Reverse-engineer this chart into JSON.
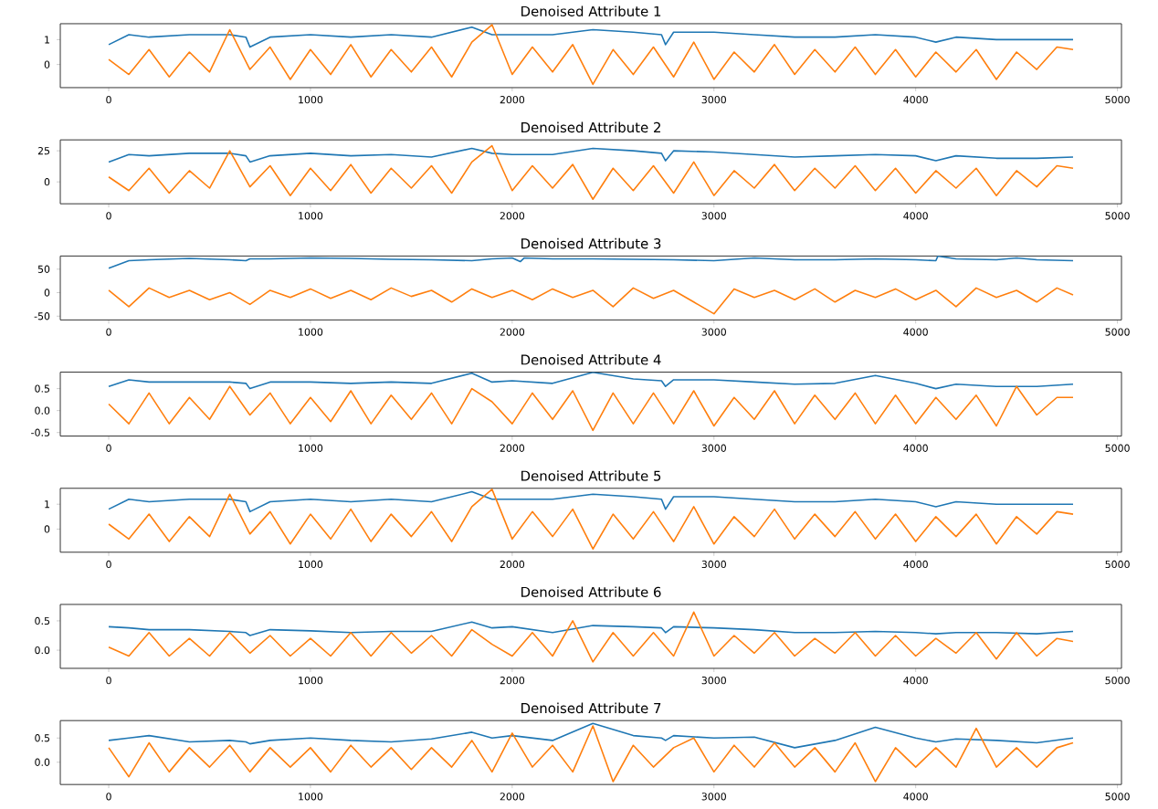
{
  "chart_data": [
    {
      "type": "line",
      "title": "Denoised Attribute 1",
      "xlim": [
        -240,
        5020
      ],
      "xticks": [
        0,
        1000,
        2000,
        3000,
        4000,
        5000
      ],
      "ylim": [
        -0.93,
        1.64
      ],
      "yticks": [
        0,
        1
      ],
      "x": [
        0,
        100,
        200,
        300,
        400,
        500,
        600,
        700,
        800,
        900,
        1000,
        1100,
        1200,
        1300,
        1400,
        1500,
        1600,
        1700,
        1800,
        1900,
        2000,
        2100,
        2200,
        2300,
        2400,
        2500,
        2600,
        2700,
        2800,
        2900,
        3000,
        3100,
        3200,
        3300,
        3400,
        3500,
        3600,
        3700,
        3800,
        3900,
        4000,
        4100,
        4200,
        4300,
        4400,
        4500,
        4600,
        4700,
        4780
      ],
      "series": [
        {
          "color": "#1f77b4",
          "x": [
            0,
            100,
            200,
            400,
            600,
            680,
            700,
            800,
            1000,
            1200,
            1400,
            1600,
            1800,
            1900,
            2000,
            2200,
            2400,
            2600,
            2740,
            2760,
            2800,
            3000,
            3200,
            3400,
            3600,
            3800,
            4000,
            4100,
            4200,
            4400,
            4600,
            4780
          ],
          "values": [
            0.8,
            1.2,
            1.1,
            1.2,
            1.2,
            1.1,
            0.7,
            1.1,
            1.2,
            1.1,
            1.2,
            1.1,
            1.5,
            1.2,
            1.2,
            1.2,
            1.4,
            1.3,
            1.2,
            0.8,
            1.3,
            1.3,
            1.2,
            1.1,
            1.1,
            1.2,
            1.1,
            0.9,
            1.1,
            1.0,
            1.0,
            1.0
          ]
        },
        {
          "color": "#ff7f0e",
          "values": [
            0.2,
            -0.4,
            0.6,
            -0.5,
            0.5,
            -0.3,
            1.4,
            -0.2,
            0.7,
            -0.6,
            0.6,
            -0.4,
            0.8,
            -0.5,
            0.6,
            -0.3,
            0.7,
            -0.5,
            0.9,
            1.6,
            -0.4,
            0.7,
            -0.3,
            0.8,
            -0.8,
            0.6,
            -0.4,
            0.7,
            -0.5,
            0.9,
            -0.6,
            0.5,
            -0.3,
            0.8,
            -0.4,
            0.6,
            -0.3,
            0.7,
            -0.4,
            0.6,
            -0.5,
            0.5,
            -0.3,
            0.6,
            -0.6,
            0.5,
            -0.2,
            0.7,
            0.6
          ]
        }
      ]
    },
    {
      "type": "line",
      "title": "Denoised Attribute 2",
      "xlim": [
        -240,
        5020
      ],
      "xticks": [
        0,
        1000,
        2000,
        3000,
        4000,
        5000
      ],
      "ylim": [
        -17.6,
        33.8
      ],
      "yticks": [
        0,
        25
      ],
      "x": [
        0,
        100,
        200,
        300,
        400,
        500,
        600,
        700,
        800,
        900,
        1000,
        1100,
        1200,
        1300,
        1400,
        1500,
        1600,
        1700,
        1800,
        1900,
        2000,
        2100,
        2200,
        2300,
        2400,
        2500,
        2600,
        2700,
        2800,
        2900,
        3000,
        3100,
        3200,
        3300,
        3400,
        3500,
        3600,
        3700,
        3800,
        3900,
        4000,
        4100,
        4200,
        4300,
        4400,
        4500,
        4600,
        4700,
        4780
      ],
      "series": [
        {
          "color": "#1f77b4",
          "x": [
            0,
            100,
            200,
            400,
            600,
            680,
            700,
            800,
            1000,
            1200,
            1400,
            1600,
            1800,
            1900,
            2000,
            2200,
            2400,
            2600,
            2740,
            2760,
            2800,
            3000,
            3200,
            3400,
            3600,
            3800,
            4000,
            4100,
            4200,
            4400,
            4600,
            4780
          ],
          "values": [
            16,
            22,
            21,
            23,
            23,
            21,
            16,
            21,
            23,
            21,
            22,
            20,
            27,
            23,
            22,
            22,
            27,
            25,
            23,
            17,
            25,
            24,
            22,
            20,
            21,
            22,
            21,
            17,
            21,
            19,
            19,
            20
          ]
        },
        {
          "color": "#ff7f0e",
          "values": [
            4,
            -7,
            11,
            -9,
            9,
            -5,
            25,
            -4,
            13,
            -11,
            11,
            -7,
            14,
            -9,
            11,
            -5,
            13,
            -9,
            16,
            29,
            -7,
            13,
            -5,
            14,
            -14,
            11,
            -7,
            13,
            -9,
            16,
            -11,
            9,
            -5,
            14,
            -7,
            11,
            -5,
            13,
            -7,
            11,
            -9,
            9,
            -5,
            11,
            -11,
            9,
            -4,
            13,
            11
          ]
        }
      ]
    },
    {
      "type": "line",
      "title": "Denoised Attribute 3",
      "xlim": [
        -240,
        5020
      ],
      "xticks": [
        0,
        1000,
        2000,
        3000,
        4000,
        5000
      ],
      "ylim": [
        -58,
        78
      ],
      "yticks": [
        -50,
        0,
        50
      ],
      "x": [
        0,
        100,
        200,
        300,
        400,
        500,
        600,
        700,
        800,
        900,
        1000,
        1100,
        1200,
        1300,
        1400,
        1500,
        1600,
        1700,
        1800,
        1900,
        2000,
        2100,
        2200,
        2300,
        2400,
        2500,
        2600,
        2700,
        2800,
        2900,
        3000,
        3100,
        3200,
        3300,
        3400,
        3500,
        3600,
        3700,
        3800,
        3900,
        4000,
        4100,
        4200,
        4300,
        4400,
        4500,
        4600,
        4700,
        4780
      ],
      "series": [
        {
          "color": "#1f77b4",
          "x": [
            0,
            100,
            200,
            400,
            600,
            680,
            700,
            800,
            1000,
            1200,
            1400,
            1600,
            1800,
            1900,
            2000,
            2040,
            2060,
            2200,
            2400,
            2600,
            2800,
            3000,
            3200,
            3400,
            3600,
            3800,
            4000,
            4100,
            4110,
            4200,
            4400,
            4500,
            4600,
            4780
          ],
          "values": [
            52,
            68,
            70,
            73,
            70,
            68,
            72,
            72,
            74,
            73,
            71,
            70,
            68,
            72,
            74,
            66,
            74,
            72,
            72,
            71,
            70,
            68,
            74,
            70,
            70,
            72,
            70,
            68,
            78,
            72,
            70,
            74,
            70,
            68
          ]
        },
        {
          "color": "#ff7f0e",
          "values": [
            5,
            -30,
            10,
            -10,
            5,
            -15,
            0,
            -25,
            5,
            -10,
            8,
            -12,
            5,
            -15,
            10,
            -8,
            5,
            -20,
            8,
            -10,
            5,
            -15,
            8,
            -10,
            5,
            -30,
            10,
            -12,
            5,
            -20,
            -45,
            8,
            -10,
            5,
            -15,
            8,
            -20,
            5,
            -10,
            8,
            -15,
            5,
            -30,
            10,
            -10,
            5,
            -20,
            10,
            -5
          ]
        }
      ]
    },
    {
      "type": "line",
      "title": "Denoised Attribute 4",
      "xlim": [
        -240,
        5020
      ],
      "xticks": [
        0,
        1000,
        2000,
        3000,
        4000,
        5000
      ],
      "ylim": [
        -0.58,
        0.875
      ],
      "yticks": [
        {
          "value": -0.5,
          "label": "-0.5"
        },
        {
          "value": 0,
          "label": "0.0"
        },
        {
          "value": 0.5,
          "label": "0.5"
        }
      ],
      "x": [
        0,
        100,
        200,
        300,
        400,
        500,
        600,
        700,
        800,
        900,
        1000,
        1100,
        1200,
        1300,
        1400,
        1500,
        1600,
        1700,
        1800,
        1900,
        2000,
        2100,
        2200,
        2300,
        2400,
        2500,
        2600,
        2700,
        2800,
        2900,
        3000,
        3100,
        3200,
        3300,
        3400,
        3500,
        3600,
        3700,
        3800,
        3900,
        4000,
        4100,
        4200,
        4300,
        4400,
        4500,
        4600,
        4700,
        4780
      ],
      "series": [
        {
          "color": "#1f77b4",
          "x": [
            0,
            100,
            200,
            400,
            600,
            680,
            700,
            800,
            1000,
            1200,
            1400,
            1600,
            1800,
            1900,
            2000,
            2200,
            2400,
            2600,
            2740,
            2760,
            2800,
            3000,
            3200,
            3400,
            3600,
            3800,
            4000,
            4100,
            4200,
            4400,
            4600,
            4780
          ],
          "values": [
            0.55,
            0.7,
            0.65,
            0.65,
            0.65,
            0.62,
            0.5,
            0.65,
            0.65,
            0.62,
            0.65,
            0.62,
            0.85,
            0.65,
            0.68,
            0.62,
            0.87,
            0.72,
            0.68,
            0.55,
            0.7,
            0.7,
            0.65,
            0.6,
            0.62,
            0.8,
            0.62,
            0.5,
            0.6,
            0.55,
            0.55,
            0.6
          ]
        },
        {
          "color": "#ff7f0e",
          "values": [
            0.15,
            -0.3,
            0.4,
            -0.3,
            0.3,
            -0.2,
            0.55,
            -0.1,
            0.4,
            -0.3,
            0.3,
            -0.25,
            0.45,
            -0.3,
            0.35,
            -0.2,
            0.4,
            -0.3,
            0.5,
            0.2,
            -0.3,
            0.4,
            -0.2,
            0.45,
            -0.45,
            0.4,
            -0.3,
            0.4,
            -0.3,
            0.45,
            -0.35,
            0.3,
            -0.2,
            0.45,
            -0.3,
            0.35,
            -0.2,
            0.4,
            -0.3,
            0.35,
            -0.3,
            0.3,
            -0.2,
            0.35,
            -0.35,
            0.55,
            -0.1,
            0.3,
            0.3
          ]
        }
      ]
    },
    {
      "type": "line",
      "title": "Denoised Attribute 5",
      "xlim": [
        -240,
        5020
      ],
      "xticks": [
        0,
        1000,
        2000,
        3000,
        4000,
        5000
      ],
      "ylim": [
        -0.93,
        1.64
      ],
      "yticks": [
        0,
        1
      ],
      "x": [
        0,
        100,
        200,
        300,
        400,
        500,
        600,
        700,
        800,
        900,
        1000,
        1100,
        1200,
        1300,
        1400,
        1500,
        1600,
        1700,
        1800,
        1900,
        2000,
        2100,
        2200,
        2300,
        2400,
        2500,
        2600,
        2700,
        2800,
        2900,
        3000,
        3100,
        3200,
        3300,
        3400,
        3500,
        3600,
        3700,
        3800,
        3900,
        4000,
        4100,
        4200,
        4300,
        4400,
        4500,
        4600,
        4700,
        4780
      ],
      "series": [
        {
          "color": "#1f77b4",
          "x": [
            0,
            100,
            200,
            400,
            600,
            680,
            700,
            800,
            1000,
            1200,
            1400,
            1600,
            1800,
            1900,
            2000,
            2200,
            2400,
            2600,
            2740,
            2760,
            2800,
            3000,
            3200,
            3400,
            3600,
            3800,
            4000,
            4100,
            4200,
            4400,
            4600,
            4780
          ],
          "values": [
            0.8,
            1.2,
            1.1,
            1.2,
            1.2,
            1.1,
            0.7,
            1.1,
            1.2,
            1.1,
            1.2,
            1.1,
            1.5,
            1.2,
            1.2,
            1.2,
            1.4,
            1.3,
            1.2,
            0.8,
            1.3,
            1.3,
            1.2,
            1.1,
            1.1,
            1.2,
            1.1,
            0.9,
            1.1,
            1.0,
            1.0,
            1.0
          ]
        },
        {
          "color": "#ff7f0e",
          "values": [
            0.2,
            -0.4,
            0.6,
            -0.5,
            0.5,
            -0.3,
            1.4,
            -0.2,
            0.7,
            -0.6,
            0.6,
            -0.4,
            0.8,
            -0.5,
            0.6,
            -0.3,
            0.7,
            -0.5,
            0.9,
            1.6,
            -0.4,
            0.7,
            -0.3,
            0.8,
            -0.8,
            0.6,
            -0.4,
            0.7,
            -0.5,
            0.9,
            -0.6,
            0.5,
            -0.3,
            0.8,
            -0.4,
            0.6,
            -0.3,
            0.7,
            -0.4,
            0.6,
            -0.5,
            0.5,
            -0.3,
            0.6,
            -0.6,
            0.5,
            -0.2,
            0.7,
            0.6
          ]
        }
      ]
    },
    {
      "type": "line",
      "title": "Denoised Attribute 6",
      "xlim": [
        -240,
        5020
      ],
      "xticks": [
        0,
        1000,
        2000,
        3000,
        4000,
        5000
      ],
      "ylim": [
        -0.31,
        0.78
      ],
      "yticks": [
        {
          "value": 0,
          "label": "0.0"
        },
        {
          "value": 0.5,
          "label": "0.5"
        }
      ],
      "x": [
        0,
        100,
        200,
        300,
        400,
        500,
        600,
        700,
        800,
        900,
        1000,
        1100,
        1200,
        1300,
        1400,
        1500,
        1600,
        1700,
        1800,
        1900,
        2000,
        2100,
        2200,
        2300,
        2400,
        2500,
        2600,
        2700,
        2800,
        2900,
        3000,
        3100,
        3200,
        3300,
        3400,
        3500,
        3600,
        3700,
        3800,
        3900,
        4000,
        4100,
        4200,
        4300,
        4400,
        4500,
        4600,
        4700,
        4780
      ],
      "series": [
        {
          "color": "#1f77b4",
          "x": [
            0,
            100,
            200,
            400,
            600,
            680,
            700,
            800,
            1000,
            1200,
            1400,
            1600,
            1800,
            1900,
            2000,
            2200,
            2400,
            2600,
            2740,
            2760,
            2800,
            3000,
            3200,
            3400,
            3600,
            3800,
            4000,
            4100,
            4200,
            4400,
            4600,
            4780
          ],
          "values": [
            0.4,
            0.38,
            0.35,
            0.35,
            0.32,
            0.3,
            0.25,
            0.35,
            0.33,
            0.3,
            0.32,
            0.32,
            0.48,
            0.38,
            0.4,
            0.3,
            0.42,
            0.4,
            0.38,
            0.3,
            0.4,
            0.38,
            0.35,
            0.3,
            0.3,
            0.32,
            0.3,
            0.28,
            0.3,
            0.3,
            0.28,
            0.32
          ]
        },
        {
          "color": "#ff7f0e",
          "values": [
            0.05,
            -0.1,
            0.3,
            -0.1,
            0.2,
            -0.1,
            0.3,
            -0.05,
            0.25,
            -0.1,
            0.2,
            -0.1,
            0.3,
            -0.1,
            0.3,
            -0.05,
            0.25,
            -0.1,
            0.35,
            0.1,
            -0.1,
            0.3,
            -0.1,
            0.5,
            -0.2,
            0.3,
            -0.1,
            0.3,
            -0.1,
            0.65,
            -0.1,
            0.25,
            -0.05,
            0.3,
            -0.1,
            0.2,
            -0.05,
            0.3,
            -0.1,
            0.25,
            -0.1,
            0.2,
            -0.05,
            0.3,
            -0.15,
            0.3,
            -0.1,
            0.2,
            0.15
          ]
        }
      ]
    },
    {
      "type": "line",
      "title": "Denoised Attribute 7",
      "xlim": [
        -240,
        5020
      ],
      "xticks": [
        0,
        1000,
        2000,
        3000,
        4000,
        5000
      ],
      "ylim": [
        -0.46,
        0.86
      ],
      "yticks": [
        {
          "value": 0,
          "label": "0.0"
        },
        {
          "value": 0.5,
          "label": "0.5"
        }
      ],
      "x": [
        0,
        100,
        200,
        300,
        400,
        500,
        600,
        700,
        800,
        900,
        1000,
        1100,
        1200,
        1300,
        1400,
        1500,
        1600,
        1700,
        1800,
        1900,
        2000,
        2100,
        2200,
        2300,
        2400,
        2500,
        2600,
        2700,
        2800,
        2900,
        3000,
        3100,
        3200,
        3300,
        3400,
        3500,
        3600,
        3700,
        3800,
        3900,
        4000,
        4100,
        4200,
        4300,
        4400,
        4500,
        4600,
        4700,
        4780
      ],
      "series": [
        {
          "color": "#1f77b4",
          "x": [
            0,
            100,
            200,
            400,
            600,
            680,
            700,
            800,
            1000,
            1200,
            1400,
            1600,
            1800,
            1900,
            2000,
            2200,
            2400,
            2600,
            2740,
            2760,
            2800,
            3000,
            3200,
            3400,
            3600,
            3800,
            4000,
            4100,
            4200,
            4400,
            4600,
            4780
          ],
          "values": [
            0.45,
            0.5,
            0.55,
            0.42,
            0.45,
            0.42,
            0.38,
            0.45,
            0.5,
            0.45,
            0.42,
            0.48,
            0.62,
            0.5,
            0.55,
            0.45,
            0.8,
            0.55,
            0.5,
            0.45,
            0.55,
            0.5,
            0.52,
            0.3,
            0.45,
            0.72,
            0.5,
            0.42,
            0.48,
            0.45,
            0.4,
            0.5
          ]
        },
        {
          "color": "#ff7f0e",
          "values": [
            0.3,
            -0.3,
            0.4,
            -0.2,
            0.3,
            -0.1,
            0.35,
            -0.2,
            0.3,
            -0.1,
            0.3,
            -0.2,
            0.35,
            -0.1,
            0.3,
            -0.15,
            0.3,
            -0.1,
            0.45,
            -0.2,
            0.6,
            -0.1,
            0.35,
            -0.2,
            0.75,
            -0.4,
            0.35,
            -0.1,
            0.3,
            0.5,
            -0.2,
            0.35,
            -0.1,
            0.4,
            -0.1,
            0.3,
            -0.2,
            0.4,
            -0.4,
            0.3,
            -0.1,
            0.3,
            -0.1,
            0.7,
            -0.1,
            0.3,
            -0.1,
            0.3,
            0.4
          ]
        }
      ]
    }
  ]
}
